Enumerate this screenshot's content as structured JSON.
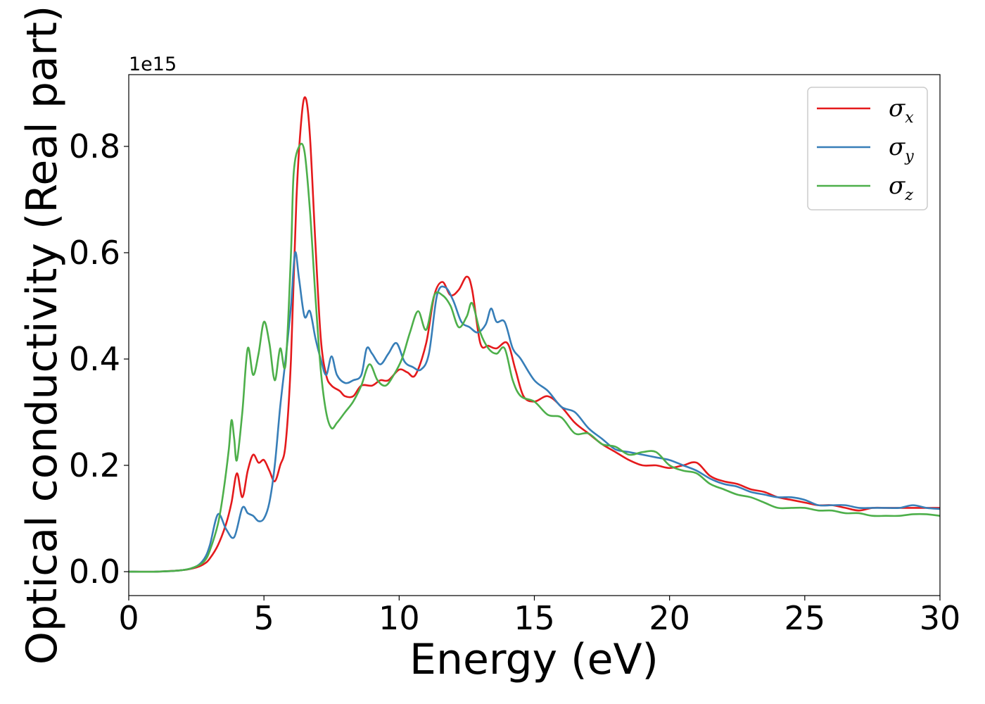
{
  "chart_data": {
    "type": "line",
    "title": "",
    "xlabel": "Energy (eV)",
    "ylabel": "Optical conductivity (Real part)",
    "y_offset_label": "1e15",
    "y_multiplier": 1000000000000000.0,
    "xlim": [
      0,
      30
    ],
    "ylim": [
      -0.045,
      0.935
    ],
    "x_ticks": [
      0,
      5,
      10,
      15,
      20,
      25,
      30
    ],
    "x_tick_labels": [
      "0",
      "5",
      "10",
      "15",
      "20",
      "25",
      "30"
    ],
    "y_ticks": [
      0.0,
      0.2,
      0.4,
      0.6,
      0.8
    ],
    "y_tick_labels": [
      "0.0",
      "0.2",
      "0.4",
      "0.6",
      "0.8"
    ],
    "grid": false,
    "legend_position": "top-right",
    "series": [
      {
        "name": "σ",
        "subscript": "x",
        "color": "#e41a1c",
        "x": [
          0,
          1,
          2,
          2.5,
          2.8,
          3,
          3.3,
          3.6,
          3.8,
          4,
          4.2,
          4.4,
          4.6,
          4.8,
          5,
          5.2,
          5.4,
          5.6,
          5.8,
          6,
          6.2,
          6.4,
          6.55,
          6.7,
          6.9,
          7.1,
          7.3,
          7.5,
          7.8,
          8.0,
          8.3,
          8.6,
          9,
          9.3,
          9.6,
          10,
          10.3,
          10.6,
          11,
          11.3,
          11.6,
          11.9,
          12.2,
          12.5,
          12.7,
          13,
          13.3,
          13.6,
          14,
          14.3,
          14.6,
          15,
          15.5,
          16,
          16.5,
          17,
          17.5,
          18,
          18.5,
          19,
          19.5,
          20,
          20.5,
          21,
          21.5,
          22,
          22.5,
          23,
          23.5,
          24,
          24.5,
          25,
          25.5,
          26,
          26.5,
          27,
          27.5,
          28,
          28.5,
          29,
          29.5,
          30
        ],
        "y": [
          0,
          0,
          0.003,
          0.008,
          0.015,
          0.025,
          0.05,
          0.09,
          0.13,
          0.185,
          0.14,
          0.19,
          0.22,
          0.205,
          0.21,
          0.19,
          0.17,
          0.2,
          0.24,
          0.4,
          0.7,
          0.86,
          0.89,
          0.82,
          0.62,
          0.44,
          0.37,
          0.35,
          0.34,
          0.33,
          0.33,
          0.35,
          0.35,
          0.36,
          0.36,
          0.38,
          0.375,
          0.37,
          0.43,
          0.52,
          0.545,
          0.52,
          0.53,
          0.555,
          0.53,
          0.43,
          0.425,
          0.42,
          0.43,
          0.38,
          0.33,
          0.32,
          0.33,
          0.31,
          0.28,
          0.26,
          0.24,
          0.225,
          0.21,
          0.2,
          0.2,
          0.195,
          0.2,
          0.205,
          0.18,
          0.17,
          0.165,
          0.155,
          0.15,
          0.14,
          0.135,
          0.13,
          0.125,
          0.125,
          0.12,
          0.115,
          0.12,
          0.12,
          0.12,
          0.12,
          0.12,
          0.12
        ]
      },
      {
        "name": "σ",
        "subscript": "y",
        "color": "#377eb8",
        "x": [
          0,
          1,
          2,
          2.5,
          2.8,
          3,
          3.3,
          3.6,
          3.9,
          4.2,
          4.4,
          4.6,
          4.8,
          5,
          5.2,
          5.4,
          5.6,
          5.8,
          6,
          6.15,
          6.3,
          6.5,
          6.7,
          6.9,
          7.1,
          7.3,
          7.5,
          7.7,
          8,
          8.3,
          8.6,
          8.8,
          9,
          9.3,
          9.6,
          9.9,
          10.2,
          10.5,
          10.8,
          11.1,
          11.4,
          11.7,
          12,
          12.3,
          12.6,
          12.9,
          13.2,
          13.4,
          13.6,
          13.9,
          14.2,
          14.5,
          15,
          15.5,
          16,
          16.5,
          17,
          17.5,
          18,
          18.5,
          19,
          19.5,
          20,
          20.5,
          21,
          21.5,
          22,
          22.5,
          23,
          23.5,
          24,
          24.5,
          25,
          25.5,
          26,
          26.5,
          27,
          27.5,
          28,
          28.5,
          29,
          29.5,
          30
        ],
        "y": [
          0,
          0,
          0.003,
          0.01,
          0.025,
          0.05,
          0.108,
          0.08,
          0.065,
          0.12,
          0.11,
          0.105,
          0.095,
          0.1,
          0.13,
          0.2,
          0.31,
          0.4,
          0.5,
          0.6,
          0.55,
          0.48,
          0.49,
          0.44,
          0.4,
          0.37,
          0.405,
          0.37,
          0.355,
          0.36,
          0.37,
          0.42,
          0.41,
          0.39,
          0.41,
          0.43,
          0.395,
          0.385,
          0.38,
          0.41,
          0.52,
          0.535,
          0.51,
          0.47,
          0.46,
          0.45,
          0.465,
          0.495,
          0.47,
          0.47,
          0.42,
          0.4,
          0.36,
          0.34,
          0.31,
          0.3,
          0.27,
          0.25,
          0.23,
          0.225,
          0.22,
          0.215,
          0.21,
          0.2,
          0.19,
          0.175,
          0.165,
          0.16,
          0.15,
          0.145,
          0.14,
          0.14,
          0.135,
          0.125,
          0.125,
          0.125,
          0.12,
          0.12,
          0.12,
          0.12,
          0.125,
          0.12,
          0.118
        ]
      },
      {
        "name": "σ",
        "subscript": "z",
        "color": "#4daf4a",
        "x": [
          0,
          1,
          2,
          2.5,
          2.8,
          3,
          3.3,
          3.5,
          3.7,
          3.8,
          3.9,
          4.0,
          4.2,
          4.4,
          4.6,
          4.8,
          5.0,
          5.2,
          5.4,
          5.6,
          5.8,
          6.0,
          6.1,
          6.3,
          6.5,
          6.7,
          6.9,
          7.1,
          7.3,
          7.5,
          7.7,
          8,
          8.3,
          8.6,
          8.9,
          9.2,
          9.5,
          9.8,
          10.1,
          10.4,
          10.7,
          11,
          11.3,
          11.6,
          11.9,
          12.2,
          12.5,
          12.7,
          13,
          13.3,
          13.6,
          13.9,
          14.2,
          14.5,
          15,
          15.5,
          16,
          16.5,
          17,
          17.5,
          18,
          18.5,
          19,
          19.5,
          20,
          20.5,
          21,
          21.5,
          22,
          22.5,
          23,
          23.5,
          24,
          24.5,
          25,
          25.5,
          26,
          26.5,
          27,
          27.5,
          28,
          28.5,
          29,
          29.5,
          30
        ],
        "y": [
          0,
          0,
          0.003,
          0.01,
          0.02,
          0.04,
          0.09,
          0.15,
          0.23,
          0.285,
          0.25,
          0.21,
          0.3,
          0.42,
          0.37,
          0.41,
          0.47,
          0.43,
          0.36,
          0.42,
          0.39,
          0.6,
          0.75,
          0.8,
          0.79,
          0.68,
          0.52,
          0.38,
          0.3,
          0.27,
          0.28,
          0.3,
          0.32,
          0.35,
          0.39,
          0.36,
          0.35,
          0.37,
          0.4,
          0.45,
          0.49,
          0.455,
          0.52,
          0.52,
          0.5,
          0.46,
          0.48,
          0.505,
          0.45,
          0.42,
          0.41,
          0.42,
          0.36,
          0.33,
          0.32,
          0.295,
          0.29,
          0.26,
          0.26,
          0.24,
          0.235,
          0.22,
          0.225,
          0.225,
          0.2,
          0.19,
          0.185,
          0.165,
          0.155,
          0.145,
          0.14,
          0.13,
          0.12,
          0.12,
          0.12,
          0.115,
          0.115,
          0.11,
          0.11,
          0.105,
          0.105,
          0.105,
          0.108,
          0.108,
          0.105
        ]
      }
    ]
  }
}
